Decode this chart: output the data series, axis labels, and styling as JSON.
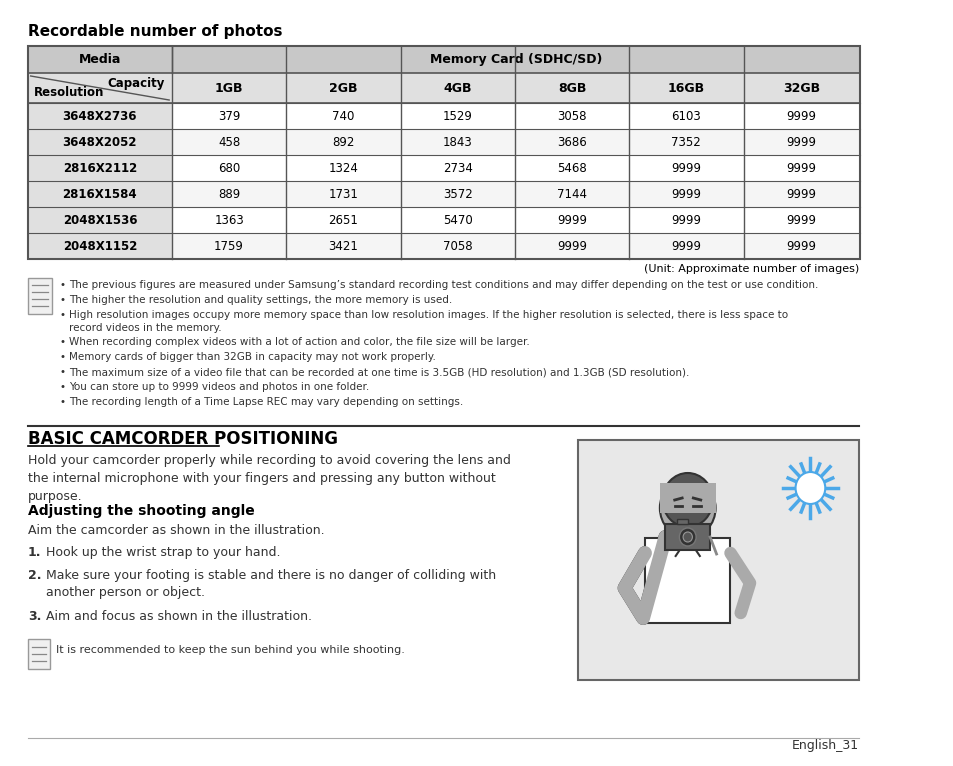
{
  "title_recordable": "Recordable number of photos",
  "table_header_col1": "Media",
  "table_header_col2": "Memory Card (SDHC/SD)",
  "table_subheader_capacity": "Capacity",
  "table_subheader_resolution": "Resolution",
  "capacity_labels": [
    "1GB",
    "2GB",
    "4GB",
    "8GB",
    "16GB",
    "32GB"
  ],
  "resolutions": [
    "3648X2736",
    "3648X2052",
    "2816X2112",
    "2816X1584",
    "2048X1536",
    "2048X1152"
  ],
  "table_data": [
    [
      379,
      740,
      1529,
      3058,
      6103,
      9999
    ],
    [
      458,
      892,
      1843,
      3686,
      7352,
      9999
    ],
    [
      680,
      1324,
      2734,
      5468,
      9999,
      9999
    ],
    [
      889,
      1731,
      3572,
      7144,
      9999,
      9999
    ],
    [
      1363,
      2651,
      5470,
      9999,
      9999,
      9999
    ],
    [
      1759,
      3421,
      7058,
      9999,
      9999,
      9999
    ]
  ],
  "unit_note": "(Unit: Approximate number of images)",
  "notes": [
    "The previous figures are measured under Samsung’s standard recording test conditions and may differ depending on the test or use condition.",
    "The higher the resolution and quality settings, the more memory is used.",
    "High resolution images occupy more memory space than low resolution images. If the higher resolution is selected, there is less space to\nrecord videos in the memory.",
    "When recording complex videos with a lot of action and color, the file size will be larger.",
    "Memory cards of bigger than 32GB in capacity may not work properly.",
    "The maximum size of a video file that can be recorded at one time is 3.5GB (HD resolution) and 1.3GB (SD resolution).",
    "You can store up to 9999 videos and photos in one folder.",
    "The recording length of a Time Lapse REC may vary depending on settings."
  ],
  "section_title": "BASIC CAMCORDER POSITIONING",
  "section_intro": "Hold your camcorder properly while recording to avoid covering the lens and\nthe internal microphone with your fingers and pressing any button without\npurpose.",
  "subsection_title": "Adjusting the shooting angle",
  "subsection_intro": "Aim the camcorder as shown in the illustration.",
  "steps": [
    "Hook up the wrist strap to your hand.",
    "Make sure your footing is stable and there is no danger of colliding with\nanother person or object.",
    "Aim and focus as shown in the illustration."
  ],
  "tip_text": "It is recommended to keep the sun behind you while shooting.",
  "footer": "English_31",
  "bg_color": "#ffffff",
  "table_header_bg": "#c8c8c8",
  "table_subheader_bg": "#e0e0e0",
  "table_row_bg1": "#ffffff",
  "table_row_bg2": "#f5f5f5",
  "table_border_color": "#555555",
  "image_bg": "#e8e8e8"
}
